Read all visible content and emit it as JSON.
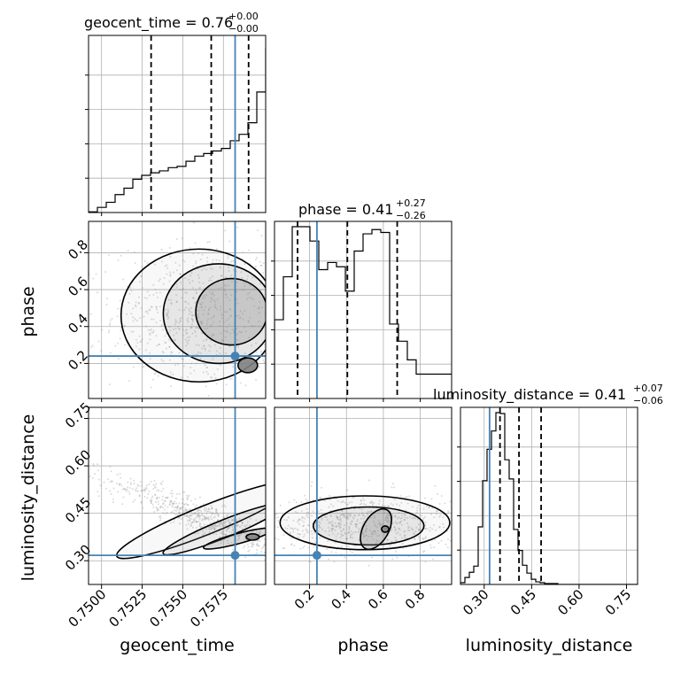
{
  "chart_data": {
    "type": "corner",
    "parameters": [
      "geocent_time",
      "phase",
      "luminosity_distance"
    ],
    "truths": {
      "geocent_time": 0.75822,
      "phase": 0.24,
      "luminosity_distance": 0.317
    },
    "colors": {
      "truth": "#4682b4",
      "hist": "#000000",
      "grid": "#b0b0b0",
      "frame": "#000000",
      "fill": "#808080",
      "samples": "#999999"
    },
    "titles": {
      "geocent_time": {
        "prefix": "geocent_time = 0.76",
        "plus": "+0.00",
        "minus": "−0.00"
      },
      "phase": {
        "prefix": "phase = 0.41",
        "plus": "+0.27",
        "minus": "−0.26"
      },
      "luminosity_distance": {
        "prefix": "luminosity_distance = 0.41",
        "plus": "+0.07",
        "minus": "−0.06"
      }
    },
    "axis_labels": {
      "geocent_time": "geocent_time",
      "phase": "phase",
      "luminosity_distance": "luminosity_distance"
    },
    "ticks": {
      "geocent_time": [
        "0.7500",
        "0.7525",
        "0.7550",
        "0.7575"
      ],
      "phase": [
        "0.2",
        "0.4",
        "0.6",
        "0.8"
      ],
      "luminosity_distance": [
        "0.30",
        "0.45",
        "0.60",
        "0.75"
      ]
    },
    "tick_values": {
      "geocent_time": [
        0.75,
        0.7525,
        0.755,
        0.7575
      ],
      "phase": [
        0.2,
        0.4,
        0.6,
        0.8
      ],
      "luminosity_distance": [
        0.3,
        0.45,
        0.6,
        0.75
      ]
    },
    "ranges": {
      "geocent_time": [
        0.7492,
        0.7601
      ],
      "phase": [
        0.01,
        0.97
      ],
      "luminosity_distance": [
        0.225,
        0.785
      ]
    },
    "quantiles": {
      "geocent_time": [
        0.75305,
        0.75675,
        0.75905
      ],
      "phase": [
        0.135,
        0.405,
        0.675
      ],
      "luminosity_distance": [
        0.35,
        0.41,
        0.48
      ]
    },
    "histograms": {
      "geocent_time": {
        "edges_start": 0.7492,
        "bin_width": 0.000545,
        "counts": [
          1,
          8,
          16,
          28,
          38,
          52,
          58,
          62,
          65,
          70,
          72,
          80,
          88,
          92,
          96,
          100,
          112,
          122,
          140,
          188,
          255,
          268
        ]
      },
      "phase": {
        "edges_start": 0.01,
        "bin_width": 0.048,
        "counts": [
          55,
          85,
          120,
          120,
          110,
          90,
          95,
          92,
          75,
          103,
          115,
          118,
          116,
          52,
          40,
          27,
          17,
          17,
          17,
          17
        ]
      },
      "luminosity_distance": {
        "edges_start": 0.225,
        "bin_width": 0.014,
        "counts": [
          2,
          8,
          14,
          21,
          66,
          119,
          155,
          176,
          197,
          196,
          143,
          121,
          63,
          39,
          22,
          13,
          6,
          3,
          2,
          1,
          1,
          1,
          0,
          0,
          0,
          0,
          0,
          0,
          0,
          0,
          0,
          0,
          0,
          0,
          0,
          0,
          0,
          0,
          0,
          0
        ]
      }
    }
  }
}
